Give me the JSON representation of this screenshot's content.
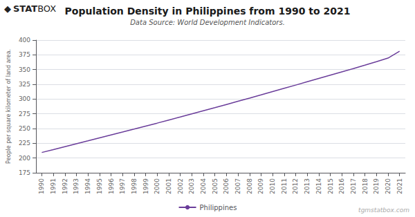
{
  "chart_data": {
    "type": "line",
    "title": "Population Density in Philippines from 1990 to 2021",
    "subtitle": "Data Source: World Development Indicators.",
    "ylabel": "People per square kilometer of land area.",
    "x": [
      1990,
      1991,
      1992,
      1993,
      1994,
      1995,
      1996,
      1997,
      1998,
      1999,
      2000,
      2001,
      2002,
      2003,
      2004,
      2005,
      2006,
      2007,
      2008,
      2009,
      2010,
      2011,
      2012,
      2013,
      2014,
      2015,
      2016,
      2017,
      2018,
      2019,
      2020,
      2021
    ],
    "series": [
      {
        "name": "Philippines",
        "color": "#6a3d9a",
        "values": [
          209.4,
          214.3,
          219.3,
          224.3,
          229.2,
          234.2,
          239.2,
          244.1,
          249.1,
          254.2,
          259.2,
          264.4,
          269.6,
          274.9,
          280.2,
          285.4,
          290.8,
          296.2,
          301.6,
          307.1,
          312.7,
          318.2,
          323.7,
          329.3,
          334.9,
          340.5,
          346.1,
          351.7,
          357.5,
          363.4,
          369.5,
          381.0
        ]
      }
    ],
    "xlim": [
      1989.5,
      2021.5
    ],
    "xticks": [
      1990,
      1991,
      1992,
      1993,
      1994,
      1995,
      1996,
      1997,
      1998,
      1999,
      2000,
      2001,
      2002,
      2003,
      2004,
      2005,
      2006,
      2007,
      2008,
      2009,
      2010,
      2011,
      2012,
      2013,
      2014,
      2015,
      2016,
      2017,
      2018,
      2019,
      2020,
      2021
    ],
    "ylim": [
      175,
      400
    ],
    "yticks": [
      175,
      200,
      225,
      250,
      275,
      300,
      325,
      350,
      375,
      400
    ],
    "grid": true,
    "legend": "bottom",
    "annotations": [
      "◆",
      "STAT",
      "BOX",
      "tgmstatbox.com"
    ]
  }
}
